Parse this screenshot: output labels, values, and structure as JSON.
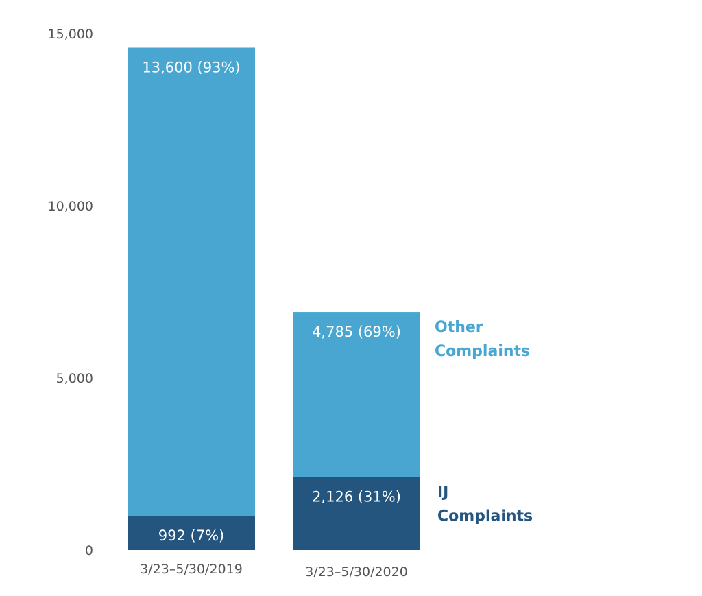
{
  "chart_data": {
    "type": "bar",
    "stacked": true,
    "categories": [
      "3/23–5/30/2019",
      "3/23–5/30/2020"
    ],
    "series": [
      {
        "name": "IJ Complaints",
        "values": [
          992,
          2126
        ],
        "labels": [
          "992 (7%)",
          "2,126 (31%)"
        ],
        "color": "#23557f"
      },
      {
        "name": "Other Complaints",
        "values": [
          13600,
          4785
        ],
        "labels": [
          "13,600 (93%)",
          "4,785 (69%)"
        ],
        "color": "#48a6d1"
      }
    ],
    "series_label_lines": [
      [
        "IJ",
        "Complaints"
      ],
      [
        "Other",
        "Complaints"
      ]
    ],
    "yticks": [
      0,
      5000,
      10000,
      15000
    ],
    "ytick_labels": [
      "0",
      "5,000",
      "10,000",
      "15,000"
    ],
    "ylim": [
      0,
      15000
    ],
    "grid": false,
    "legend": "right"
  }
}
